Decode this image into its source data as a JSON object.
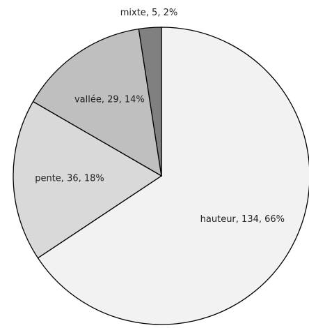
{
  "chart_data": {
    "type": "pie",
    "values": [
      134,
      36,
      29,
      5
    ],
    "value_labels": [
      "hauteur, 134, 66%",
      "pente, 36, 18%",
      "vallée, 29, 14%",
      "mixte, 5, 2%"
    ],
    "colors": [
      "#f2f2f2",
      "#d9d9d9",
      "#bfbfbf",
      "#808080"
    ]
  }
}
